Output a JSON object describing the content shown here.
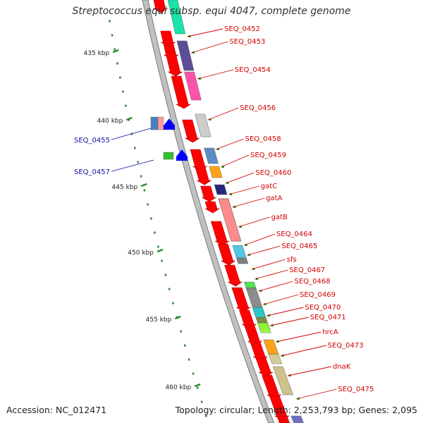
{
  "title": "Streptococcus equi subsp. equi 4047, complete genome",
  "footer": {
    "accession": "Accession: NC_012471",
    "topology": "Topology: circular; Length: 2,253,793 bp; Genes: 2,095"
  },
  "colors": {
    "backbone": "#9a9a9a",
    "forward_label": "#d40000",
    "reverse_label": "#1010a0",
    "ruler_dots": "#2a8a2a",
    "gene_arrow": "#ff0000"
  },
  "ruler_ticks": [
    {
      "label": "435 kbp"
    },
    {
      "label": "440 kbp"
    },
    {
      "label": "445 kbp"
    },
    {
      "label": "450 kbp"
    },
    {
      "label": "455 kbp"
    },
    {
      "label": "460 kbp"
    }
  ],
  "forward_genes": [
    {
      "label": "SEQ_0452",
      "color": "#00e0a0"
    },
    {
      "label": "SEQ_0453",
      "color": "#4a3a8c"
    },
    {
      "label": "SEQ_0454",
      "color": "#ff40a0"
    },
    {
      "label": "SEQ_0456",
      "color": "#c8c8c8"
    },
    {
      "label": "SEQ_0458",
      "color": "#4a80c0"
    },
    {
      "label": "SEQ_0459",
      "color": "#ff9900"
    },
    {
      "label": "SEQ_0460",
      "color": "#10106e"
    },
    {
      "label": "gatC",
      "color": "#ff8a8a"
    },
    {
      "label": "gatA",
      "color": "#ff8a8a"
    },
    {
      "label": "gatB",
      "color": "#ff8a8a"
    },
    {
      "label": "SEQ_0464",
      "color": "#40c0e0"
    },
    {
      "label": "SEQ_0465",
      "color": "#707070"
    },
    {
      "label": "sfs",
      "color": "#40e040"
    },
    {
      "label": "SEQ_0467",
      "color": "#808080"
    },
    {
      "label": "SEQ_0468",
      "color": "#707070"
    },
    {
      "label": "SEQ_0469",
      "color": "#20d0d0"
    },
    {
      "label": "SEQ_0470",
      "color": "#708030"
    },
    {
      "label": "SEQ_0471",
      "color": "#90ff30"
    },
    {
      "label": "hrcA",
      "color": "#ff9900"
    },
    {
      "label": "SEQ_0473",
      "color": "#d0c890"
    },
    {
      "label": "dnaK",
      "color": "#c8bc80"
    },
    {
      "label": "SEQ_0475",
      "color": "#6060c0"
    }
  ],
  "reverse_genes": [
    {
      "label": "SEQ_0455",
      "color": "#4a80c0"
    },
    {
      "label": "SEQ_0457",
      "color": "#30c030"
    }
  ]
}
